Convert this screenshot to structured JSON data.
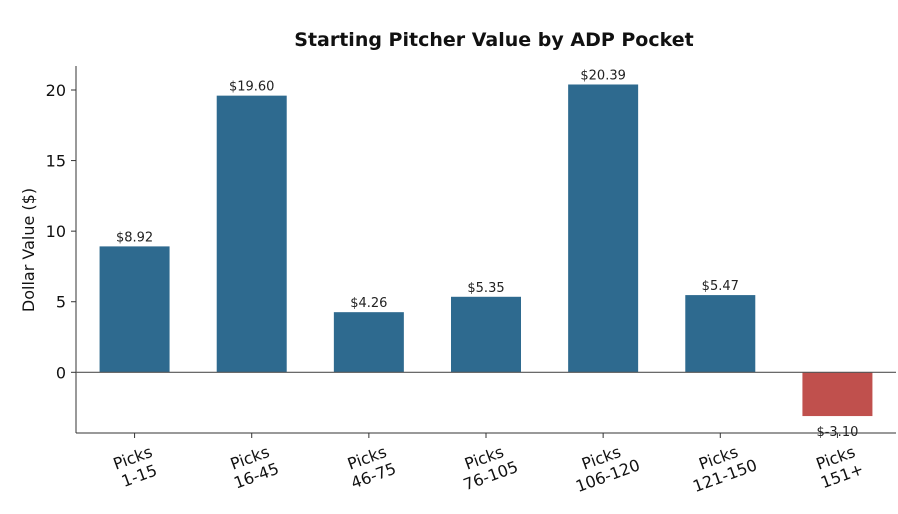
{
  "chart_data": {
    "type": "bar",
    "title": "Starting Pitcher Value by ADP Pocket",
    "xlabel": "",
    "ylabel": "Dollar Value ($)",
    "ylim": [
      -4.3,
      21.7
    ],
    "yticks": [
      0,
      5,
      10,
      15,
      20
    ],
    "categories": [
      [
        "Picks",
        "1-15"
      ],
      [
        "Picks",
        "16-45"
      ],
      [
        "Picks",
        "46-75"
      ],
      [
        "Picks",
        "76-105"
      ],
      [
        "Picks",
        "106-120"
      ],
      [
        "Picks",
        "121-150"
      ],
      [
        "Picks",
        "151+"
      ]
    ],
    "values": [
      8.92,
      19.6,
      4.26,
      5.35,
      20.39,
      5.47,
      -3.1
    ],
    "data_labels": [
      "$8.92",
      "$19.60",
      "$4.26",
      "$5.35",
      "$20.39",
      "$5.47",
      "$-3.10"
    ],
    "colors": {
      "positive": "#2e6a8f",
      "negative": "#c0504d",
      "zero_line": "#555555",
      "axis": "#333333"
    },
    "grid": false,
    "legend": "none"
  }
}
